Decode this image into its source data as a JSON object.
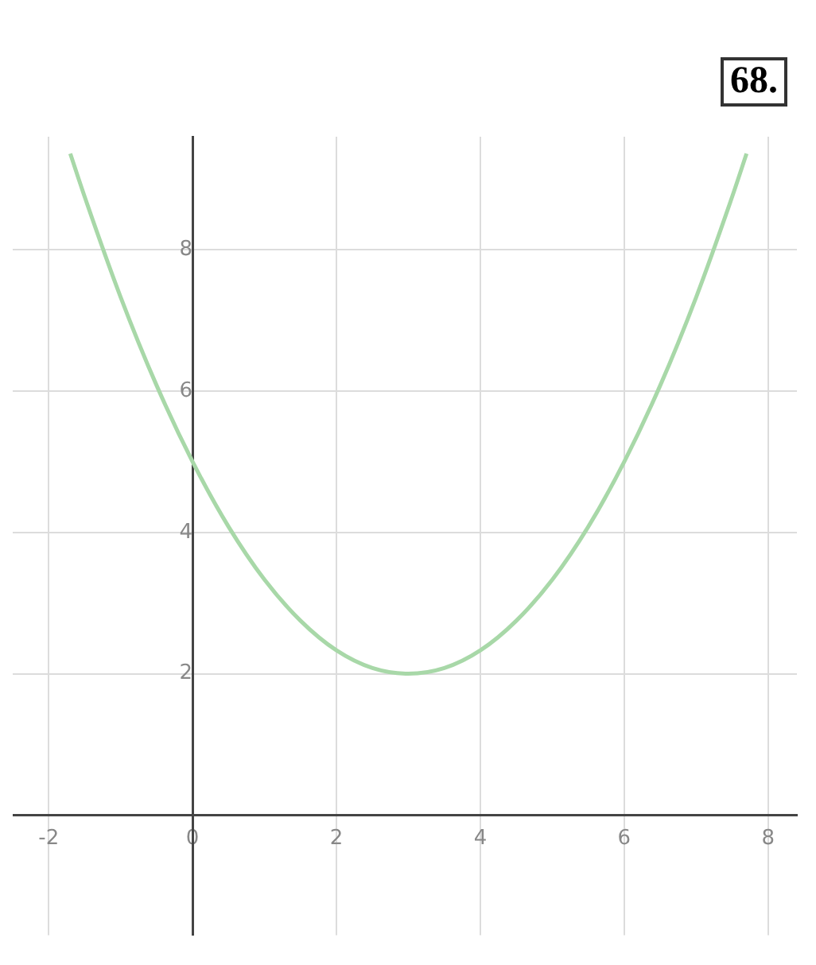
{
  "chart_data": {
    "type": "line",
    "annotations": [
      "68."
    ],
    "x": [
      -1.7,
      -1.5,
      -1,
      -0.5,
      0,
      0.5,
      1,
      1.5,
      2,
      2.5,
      3,
      3.5,
      4,
      4.5,
      5,
      5.5,
      6,
      6.5,
      7,
      7.5,
      7.7
    ],
    "series": [
      {
        "color": "#a8d8a8",
        "values": [
          9.36,
          8.75,
          7.33,
          6.08,
          5,
          4.08,
          3.33,
          2.75,
          2.33,
          2.08,
          2,
          2.08,
          2.33,
          2.75,
          3.33,
          4.08,
          5,
          6.08,
          7.33,
          8.75,
          9.36
        ]
      }
    ],
    "xlim": [
      -2.5,
      8.4
    ],
    "ylim": [
      -1.7,
      9.6
    ],
    "xticks": [
      -2,
      0,
      2,
      4,
      6,
      8
    ],
    "yticks": [
      2,
      4,
      6,
      8
    ],
    "grid": true,
    "legend": false,
    "marker": "none",
    "line_style": "solid"
  }
}
